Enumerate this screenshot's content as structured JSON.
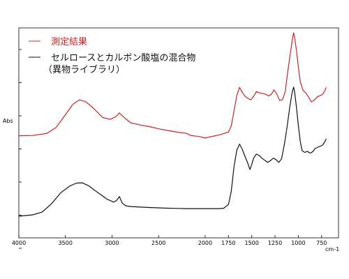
{
  "chart_data": {
    "type": "line",
    "title": "",
    "xlabel": "",
    "ylabel": "Abs",
    "x_unit": "cm-1",
    "xlim": [
      4000,
      700
    ],
    "x_reversed": true,
    "grid": false,
    "legend_placement": "top-left",
    "x_ticks": [
      4000,
      3500,
      3000,
      2500,
      2000,
      1750,
      1500,
      1250,
      1000,
      750
    ],
    "series": [
      {
        "name": "測定結果",
        "color": "#cc2222",
        "points": [
          [
            4000,
            0.3
          ],
          [
            3850,
            0.302
          ],
          [
            3700,
            0.316
          ],
          [
            3600,
            0.36
          ],
          [
            3500,
            0.452
          ],
          [
            3420,
            0.528
          ],
          [
            3350,
            0.56
          ],
          [
            3280,
            0.545
          ],
          [
            3200,
            0.5
          ],
          [
            3100,
            0.432
          ],
          [
            3020,
            0.418
          ],
          [
            2960,
            0.438
          ],
          [
            2920,
            0.465
          ],
          [
            2880,
            0.438
          ],
          [
            2800,
            0.394
          ],
          [
            2700,
            0.378
          ],
          [
            2600,
            0.366
          ],
          [
            2500,
            0.35
          ],
          [
            2400,
            0.338
          ],
          [
            2300,
            0.326
          ],
          [
            2200,
            0.317
          ],
          [
            2150,
            0.301
          ],
          [
            2100,
            0.297
          ],
          [
            2050,
            0.292
          ],
          [
            2000,
            0.283
          ],
          [
            1950,
            0.292
          ],
          [
            1900,
            0.298
          ],
          [
            1850,
            0.306
          ],
          [
            1800,
            0.316
          ],
          [
            1750,
            0.326
          ],
          [
            1720,
            0.37
          ],
          [
            1690,
            0.48
          ],
          [
            1660,
            0.592
          ],
          [
            1630,
            0.65
          ],
          [
            1600,
            0.612
          ],
          [
            1570,
            0.585
          ],
          [
            1540,
            0.57
          ],
          [
            1510,
            0.56
          ],
          [
            1480,
            0.585
          ],
          [
            1450,
            0.62
          ],
          [
            1420,
            0.61
          ],
          [
            1380,
            0.605
          ],
          [
            1350,
            0.6
          ],
          [
            1320,
            0.588
          ],
          [
            1290,
            0.6
          ],
          [
            1260,
            0.632
          ],
          [
            1230,
            0.602
          ],
          [
            1200,
            0.555
          ],
          [
            1170,
            0.56
          ],
          [
            1140,
            0.62
          ],
          [
            1110,
            0.78
          ],
          [
            1080,
            0.92
          ],
          [
            1060,
            1.015
          ],
          [
            1050,
            1.045
          ],
          [
            1040,
            1.01
          ],
          [
            1020,
            0.92
          ],
          [
            1000,
            0.8
          ],
          [
            980,
            0.695
          ],
          [
            950,
            0.628
          ],
          [
            920,
            0.61
          ],
          [
            890,
            0.58
          ],
          [
            860,
            0.546
          ],
          [
            830,
            0.556
          ],
          [
            800,
            0.58
          ],
          [
            770,
            0.59
          ],
          [
            740,
            0.598
          ],
          [
            720,
            0.62
          ],
          [
            700,
            0.65
          ]
        ]
      },
      {
        "name": "セルロースとカルボン酸塩の混合物",
        "name_line2": "（異物ライブラリ）",
        "color": "#111111",
        "points": [
          [
            4000,
            0.0
          ],
          [
            3850,
            0.01
          ],
          [
            3750,
            0.03
          ],
          [
            3650,
            0.09
          ],
          [
            3550,
            0.17
          ],
          [
            3450,
            0.22
          ],
          [
            3380,
            0.24
          ],
          [
            3320,
            0.242
          ],
          [
            3250,
            0.22
          ],
          [
            3150,
            0.17
          ],
          [
            3050,
            0.122
          ],
          [
            2980,
            0.102
          ],
          [
            2950,
            0.115
          ],
          [
            2920,
            0.142
          ],
          [
            2890,
            0.095
          ],
          [
            2850,
            0.075
          ],
          [
            2800,
            0.07
          ],
          [
            2600,
            0.063
          ],
          [
            2400,
            0.058
          ],
          [
            2200,
            0.055
          ],
          [
            2000,
            0.055
          ],
          [
            1850,
            0.055
          ],
          [
            1800,
            0.058
          ],
          [
            1750,
            0.085
          ],
          [
            1720,
            0.18
          ],
          [
            1690,
            0.36
          ],
          [
            1660,
            0.48
          ],
          [
            1630,
            0.522
          ],
          [
            1600,
            0.482
          ],
          [
            1570,
            0.43
          ],
          [
            1540,
            0.38
          ],
          [
            1520,
            0.338
          ],
          [
            1500,
            0.375
          ],
          [
            1480,
            0.42
          ],
          [
            1450,
            0.45
          ],
          [
            1420,
            0.44
          ],
          [
            1390,
            0.42
          ],
          [
            1360,
            0.405
          ],
          [
            1330,
            0.39
          ],
          [
            1300,
            0.402
          ],
          [
            1270,
            0.42
          ],
          [
            1240,
            0.41
          ],
          [
            1210,
            0.39
          ],
          [
            1180,
            0.415
          ],
          [
            1150,
            0.52
          ],
          [
            1120,
            0.65
          ],
          [
            1090,
            0.8
          ],
          [
            1065,
            0.9
          ],
          [
            1050,
            0.935
          ],
          [
            1040,
            0.9
          ],
          [
            1020,
            0.79
          ],
          [
            1000,
            0.66
          ],
          [
            980,
            0.545
          ],
          [
            960,
            0.475
          ],
          [
            930,
            0.462
          ],
          [
            900,
            0.47
          ],
          [
            880,
            0.458
          ],
          [
            860,
            0.46
          ],
          [
            840,
            0.472
          ],
          [
            820,
            0.49
          ],
          [
            790,
            0.5
          ],
          [
            760,
            0.508
          ],
          [
            740,
            0.515
          ],
          [
            720,
            0.535
          ],
          [
            700,
            0.56
          ]
        ]
      }
    ]
  }
}
